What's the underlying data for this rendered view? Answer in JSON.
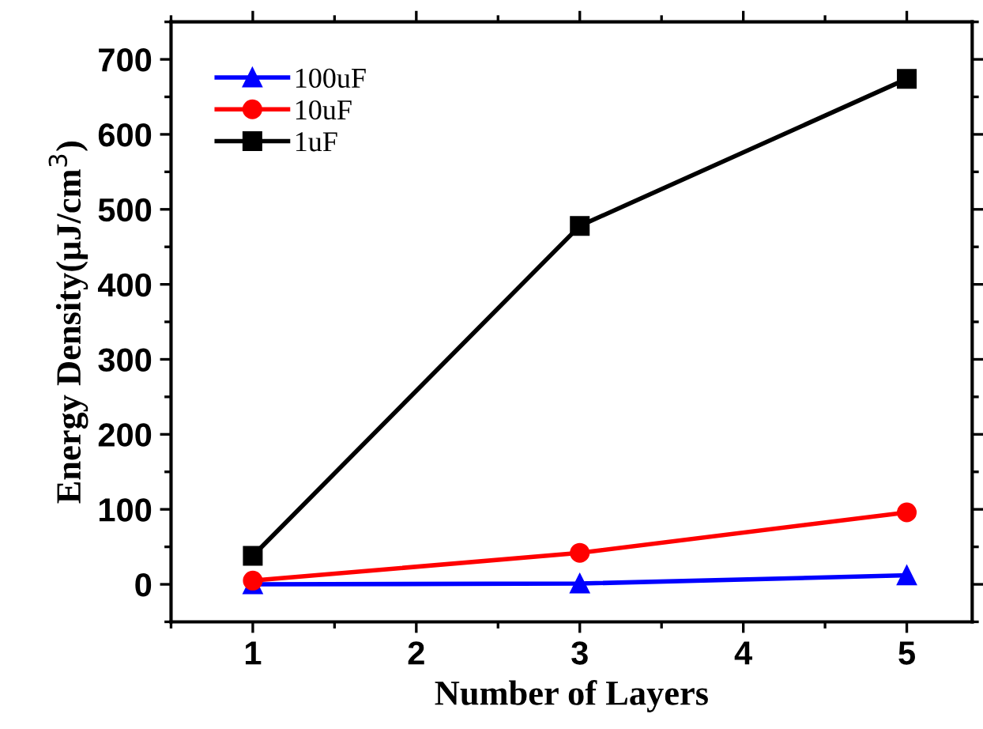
{
  "chart_data": {
    "type": "line",
    "xlabel": "Number of Layers",
    "ylabel": "Energy Density(μJ/cm$^{3}$)",
    "x": [
      1,
      3,
      5
    ],
    "series": [
      {
        "name": "100uF",
        "color": "#0000ff",
        "values": [
          0,
          1,
          12
        ],
        "marker": "triangle"
      },
      {
        "name": "10uF",
        "color": "#ff0000",
        "values": [
          5,
          42,
          96
        ],
        "marker": "circle"
      },
      {
        "name": "1uF",
        "color": "#000000",
        "values": [
          38,
          478,
          674
        ],
        "marker": "square"
      }
    ],
    "xlim": [
      0.5,
      5.4
    ],
    "xticks": [
      1,
      2,
      3,
      4,
      5
    ],
    "ylim": [
      -50,
      750
    ],
    "yticks": [
      0,
      100,
      200,
      300,
      400,
      500,
      600,
      700
    ],
    "grid": false,
    "legend": "top left",
    "line_style": "solid"
  }
}
